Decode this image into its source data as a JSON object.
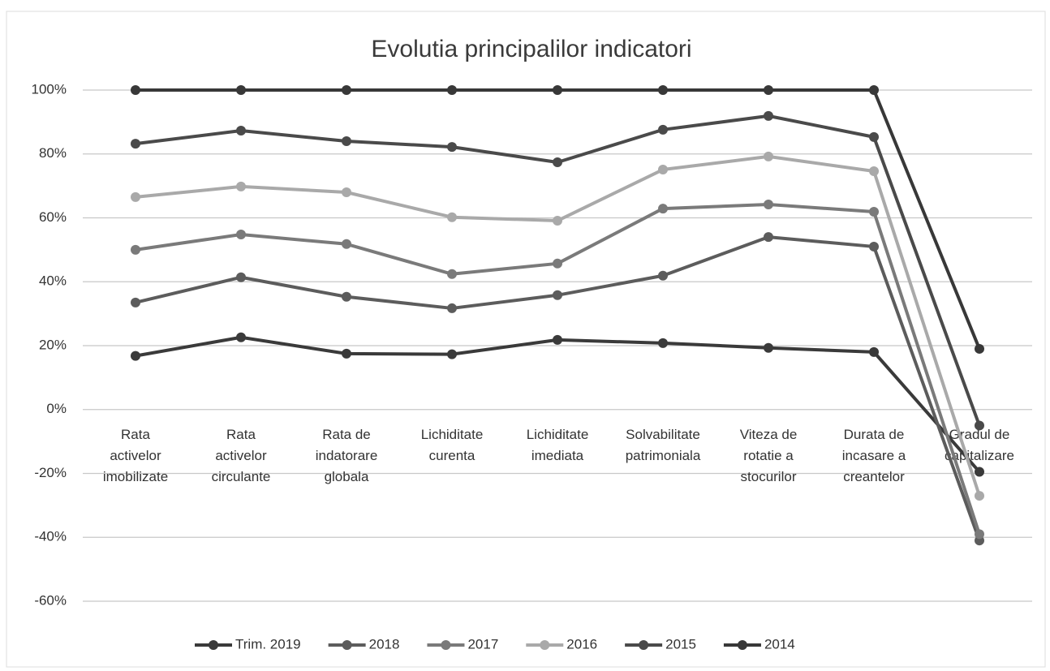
{
  "chart_data": {
    "type": "line",
    "title": "Evolutia principalilor indicatori",
    "categories": [
      "Rata\nactivelor\nimobilizate",
      "Rata\nactivelor\ncirculante",
      "Rata de\nindatorare\nglobala",
      "Lichiditate\ncurenta",
      "Lichiditate\nimediata",
      "Solvabilitate\npatrimoniala",
      "Viteza de\nrotatie a\nstocurilor",
      "Durata de\nincasare a\ncreantelor",
      "Gradul de\ncapitalizare"
    ],
    "series": [
      {
        "name": "Trim. 2019",
        "color": "#3a3a3a",
        "values": [
          16.8,
          22.6,
          17.5,
          17.3,
          21.8,
          20.8,
          19.3,
          18.0,
          -19.5
        ]
      },
      {
        "name": "2018",
        "color": "#5c5c5c",
        "values": [
          33.5,
          41.4,
          35.3,
          31.7,
          35.8,
          41.9,
          54,
          51,
          -41
        ]
      },
      {
        "name": "2017",
        "color": "#7a7a7a",
        "values": [
          50,
          54.8,
          51.8,
          42.4,
          45.7,
          62.9,
          64.2,
          61.9,
          -39
        ]
      },
      {
        "name": "2016",
        "color": "#a9a9a9",
        "values": [
          66.5,
          69.8,
          68,
          60.2,
          59.1,
          75.1,
          79.2,
          74.6,
          -27
        ]
      },
      {
        "name": "2015",
        "color": "#4a4a4a",
        "values": [
          83.2,
          87.3,
          84,
          82.2,
          77.4,
          87.6,
          91.9,
          85.3,
          -5
        ]
      },
      {
        "name": "2014",
        "color": "#383838",
        "values": [
          100,
          100,
          100,
          100,
          100,
          100,
          100,
          100,
          19
        ]
      }
    ],
    "ylim": [
      -60,
      100
    ],
    "yticks": [
      {
        "value": -60,
        "label": "-60%"
      },
      {
        "value": -40,
        "label": "-40%"
      },
      {
        "value": -20,
        "label": "-20%"
      },
      {
        "value": 0,
        "label": "0%"
      },
      {
        "value": 20,
        "label": "20%"
      },
      {
        "value": 40,
        "label": "40%"
      },
      {
        "value": 60,
        "label": "60%"
      },
      {
        "value": 80,
        "label": "80%"
      },
      {
        "value": 100,
        "label": "100%"
      }
    ],
    "grid": true,
    "legend": "bottom"
  }
}
